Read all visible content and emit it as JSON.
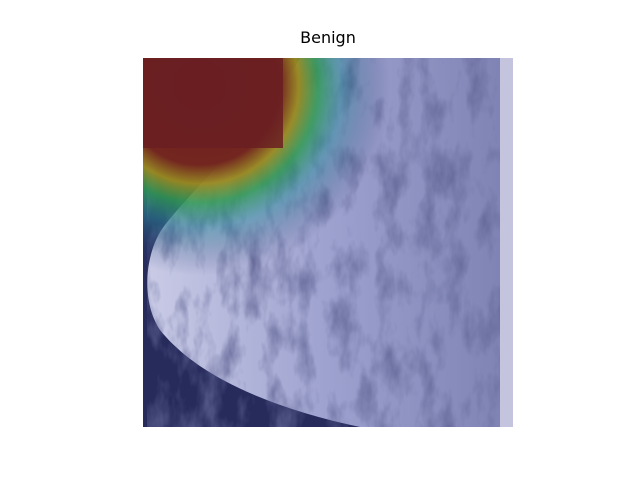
{
  "title": "Benign"
}
